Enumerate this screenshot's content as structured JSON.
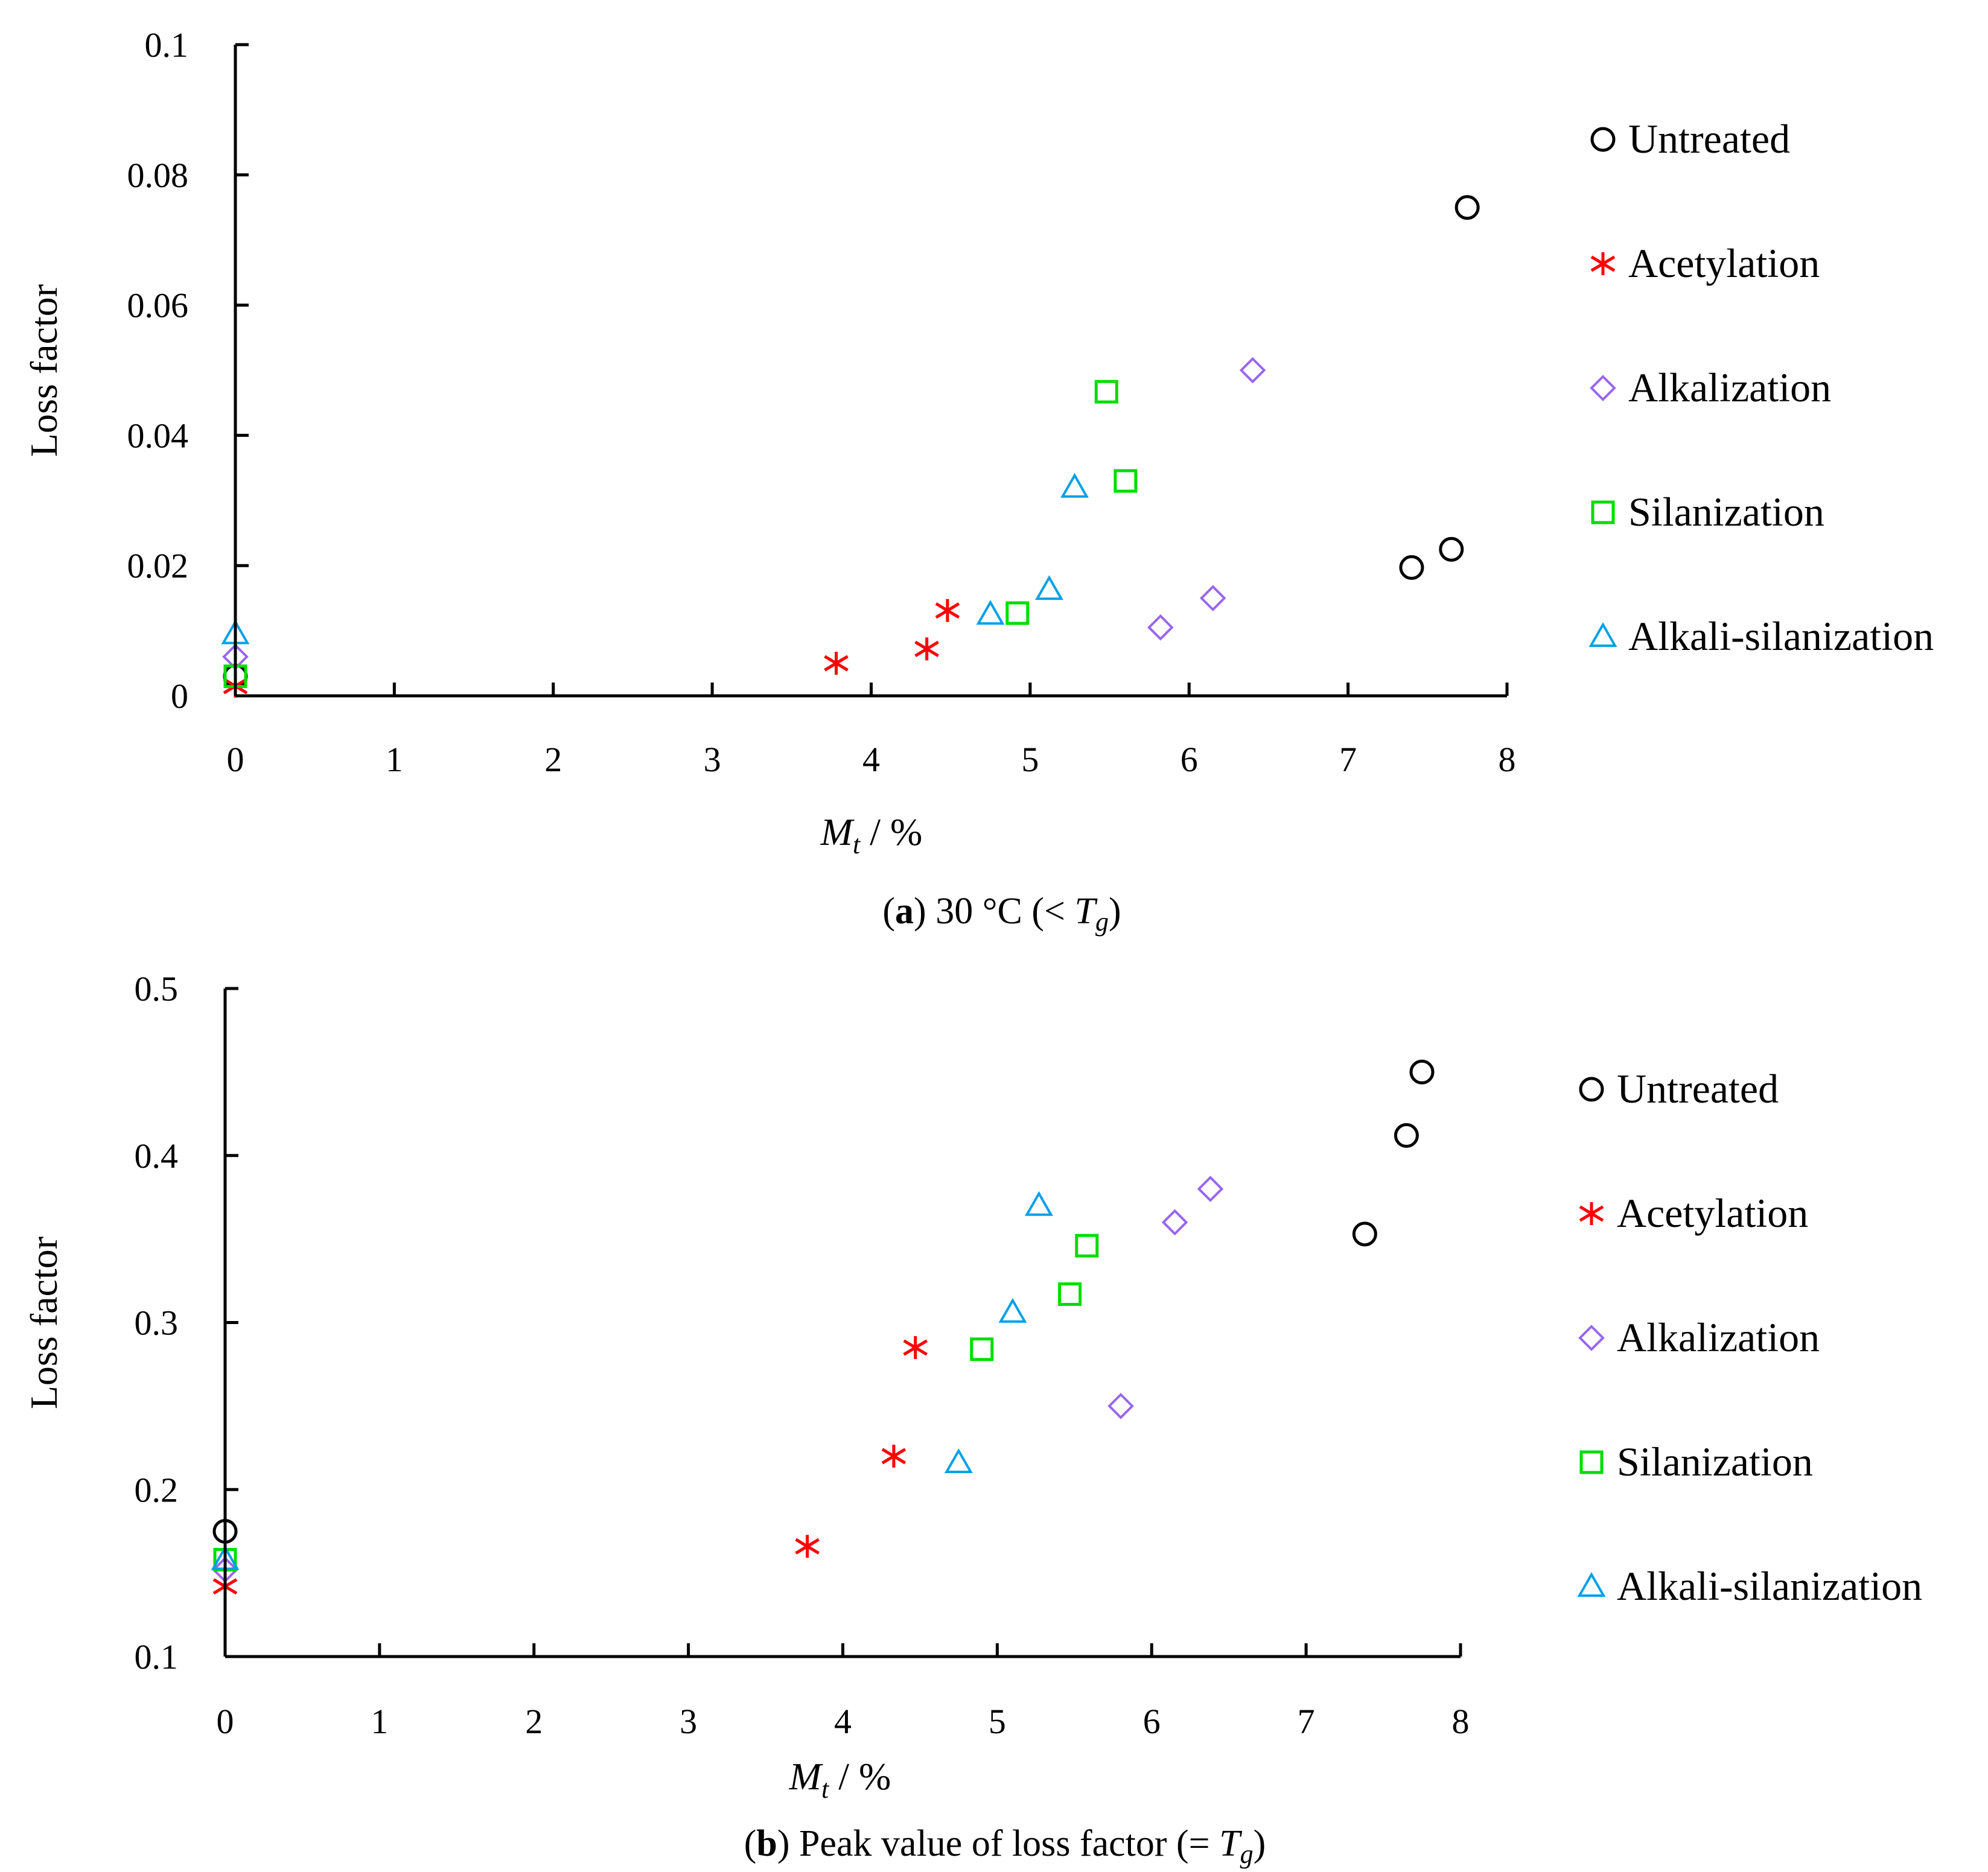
{
  "chart_data": [
    {
      "id": "a",
      "type": "scatter",
      "caption_bold": "a",
      "caption_text": " 30 °C (< ",
      "caption_italic": "T",
      "caption_sub": "g",
      "caption_end": ")",
      "xlabel_main": "M",
      "xlabel_sub": "t",
      "xlabel_rest": " / %",
      "ylabel": "Loss factor",
      "xlim": [
        0,
        8
      ],
      "ylim": [
        0,
        0.1
      ],
      "xticks": [
        "0",
        "1",
        "2",
        "3",
        "4",
        "5",
        "6",
        "7",
        "8"
      ],
      "yticks": [
        "0",
        "0.02",
        "0.04",
        "0.06",
        "0.08",
        "0.1"
      ],
      "series": [
        {
          "name": "Untreated",
          "marker": "circle",
          "color": "#000000",
          "points": [
            [
              0,
              0.003
            ],
            [
              7.4,
              0.0197
            ],
            [
              7.65,
              0.0225
            ],
            [
              7.75,
              0.075
            ]
          ]
        },
        {
          "name": "Acetylation",
          "marker": "asterisk",
          "color": "#ff0000",
          "points": [
            [
              0,
              0.0015
            ],
            [
              3.78,
              0.005
            ],
            [
              4.35,
              0.0072
            ],
            [
              4.48,
              0.0131
            ]
          ]
        },
        {
          "name": "Alkalization",
          "marker": "diamond",
          "color": "#9966ee",
          "points": [
            [
              0,
              0.006
            ],
            [
              5.82,
              0.0105
            ],
            [
              6.15,
              0.015
            ],
            [
              6.4,
              0.05
            ]
          ]
        },
        {
          "name": "Silanization",
          "marker": "square",
          "color": "#00dd00",
          "points": [
            [
              0,
              0.003
            ],
            [
              4.92,
              0.0127
            ],
            [
              5.48,
              0.0467
            ],
            [
              5.6,
              0.033
            ]
          ]
        },
        {
          "name": "Alkali-silanization",
          "marker": "triangle",
          "color": "#00a0e8",
          "points": [
            [
              0,
              0.0095
            ],
            [
              4.75,
              0.0125
            ],
            [
              5.12,
              0.0163
            ],
            [
              5.28,
              0.032
            ]
          ]
        }
      ]
    },
    {
      "id": "b",
      "type": "scatter",
      "caption_bold": "b",
      "caption_text": " Peak value of loss factor (= ",
      "caption_italic": "T",
      "caption_sub": "g",
      "caption_end": ")",
      "xlabel_main": "M",
      "xlabel_sub": "t",
      "xlabel_rest": " / %",
      "ylabel": "Loss factor",
      "xlim": [
        0,
        8
      ],
      "ylim": [
        0.1,
        0.5
      ],
      "xticks": [
        "0",
        "1",
        "2",
        "3",
        "4",
        "5",
        "6",
        "7",
        "8"
      ],
      "yticks": [
        "0.1",
        "0.2",
        "0.3",
        "0.4",
        "0.5"
      ],
      "series": [
        {
          "name": "Untreated",
          "marker": "circle",
          "color": "#000000",
          "points": [
            [
              0,
              0.175
            ],
            [
              7.38,
              0.353
            ],
            [
              7.65,
              0.412
            ],
            [
              7.75,
              0.45
            ]
          ]
        },
        {
          "name": "Acetylation",
          "marker": "asterisk",
          "color": "#ff0000",
          "points": [
            [
              0,
              0.142
            ],
            [
              3.77,
              0.166
            ],
            [
              4.33,
              0.22
            ],
            [
              4.47,
              0.285
            ]
          ]
        },
        {
          "name": "Alkalization",
          "marker": "diamond",
          "color": "#9966ee",
          "points": [
            [
              0,
              0.152
            ],
            [
              5.8,
              0.25
            ],
            [
              6.15,
              0.36
            ],
            [
              6.38,
              0.38
            ]
          ]
        },
        {
          "name": "Silanization",
          "marker": "square",
          "color": "#00dd00",
          "points": [
            [
              0,
              0.158
            ],
            [
              4.9,
              0.284
            ],
            [
              5.47,
              0.317
            ],
            [
              5.58,
              0.346
            ]
          ]
        },
        {
          "name": "Alkali-silanization",
          "marker": "triangle",
          "color": "#00a0e8",
          "points": [
            [
              0,
              0.158
            ],
            [
              4.75,
              0.216
            ],
            [
              5.1,
              0.306
            ],
            [
              5.27,
              0.37
            ]
          ]
        }
      ]
    }
  ]
}
